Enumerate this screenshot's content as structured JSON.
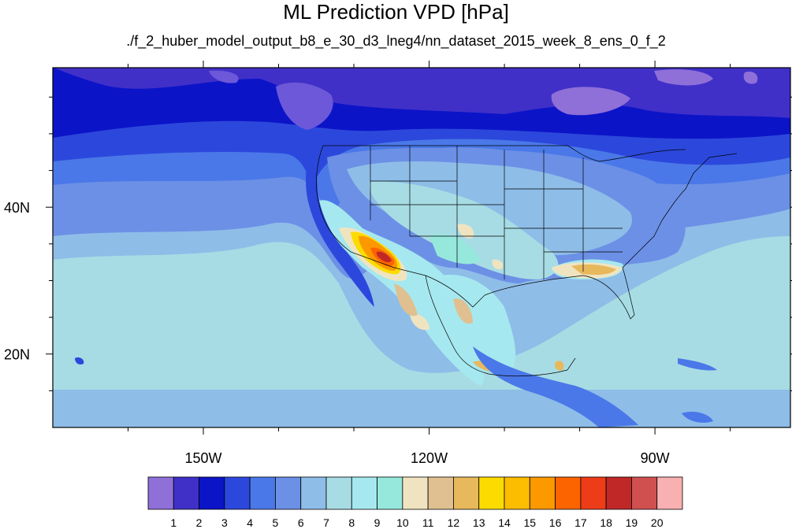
{
  "title": "ML Prediction VPD [hPa]",
  "subtitle": "./f_2_huber_model_output_b8_e_30_d3_lneg4/nn_dataset_2015_week_8_ens_0_f_2",
  "map": {
    "lon_range": [
      -170,
      -72
    ],
    "lat_range": [
      10,
      59
    ],
    "x_ticks": [
      {
        "lon": -150,
        "label": "150W"
      },
      {
        "lon": -120,
        "label": "120W"
      },
      {
        "lon": -90,
        "label": "90W"
      }
    ],
    "y_ticks": [
      {
        "lat": 40,
        "label": "40N"
      },
      {
        "lat": 20,
        "label": "20N"
      }
    ],
    "colorbar": {
      "colors": [
        "#8f6fd8",
        "#4030c8",
        "#0c14c8",
        "#2c48dc",
        "#4a78e8",
        "#6c90e6",
        "#8ebde8",
        "#a8dce4",
        "#a6e8ef",
        "#96e8dc",
        "#f0e4c0",
        "#e0c090",
        "#e8b85c",
        "#fcdc00",
        "#fcbc00",
        "#fc9800",
        "#fc6400",
        "#ec3c18",
        "#c02828",
        "#d05050",
        "#f8b0b0"
      ],
      "labels": [
        "1",
        "2",
        "3",
        "4",
        "5",
        "6",
        "7",
        "8",
        "9",
        "10",
        "11",
        "12",
        "13",
        "14",
        "15",
        "16",
        "17",
        "18",
        "19",
        "20"
      ]
    }
  }
}
